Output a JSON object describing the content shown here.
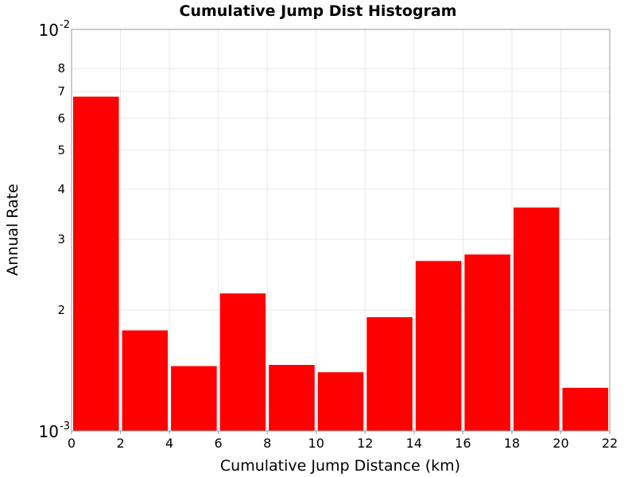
{
  "chart_data": {
    "type": "bar",
    "title": "Cumulative Jump Dist Histogram",
    "xlabel": "Cumulative Jump Distance (km)",
    "ylabel": "Annual Rate",
    "y_scale": "log",
    "xlim": [
      0,
      22
    ],
    "ylim": [
      0.001,
      0.01
    ],
    "x_ticks": [
      "0",
      "2",
      "4",
      "6",
      "8",
      "10",
      "12",
      "14",
      "16",
      "18",
      "20",
      "22"
    ],
    "y_minor_ticks": [
      {
        "value": 0.002,
        "label": "2"
      },
      {
        "value": 0.003,
        "label": "3"
      },
      {
        "value": 0.004,
        "label": "4"
      },
      {
        "value": 0.005,
        "label": "5"
      },
      {
        "value": 0.006,
        "label": "6"
      },
      {
        "value": 0.007,
        "label": "7"
      },
      {
        "value": 0.008,
        "label": "8"
      }
    ],
    "y_decades": [
      {
        "value": 0.001,
        "base": "10",
        "exp": "-3"
      },
      {
        "value": 0.01,
        "base": "10",
        "exp": "-2"
      }
    ],
    "grid": true,
    "bar_color": "#ff0000",
    "bins": [
      {
        "x0": 0,
        "x1": 2,
        "value": 0.0068
      },
      {
        "x0": 2,
        "x1": 4,
        "value": 0.00178
      },
      {
        "x0": 4,
        "x1": 6,
        "value": 0.00145
      },
      {
        "x0": 6,
        "x1": 8,
        "value": 0.0022
      },
      {
        "x0": 8,
        "x1": 10,
        "value": 0.00146
      },
      {
        "x0": 10,
        "x1": 12,
        "value": 0.0014
      },
      {
        "x0": 12,
        "x1": 14,
        "value": 0.00192
      },
      {
        "x0": 14,
        "x1": 16,
        "value": 0.00265
      },
      {
        "x0": 16,
        "x1": 18,
        "value": 0.00275
      },
      {
        "x0": 18,
        "x1": 20,
        "value": 0.0036
      },
      {
        "x0": 20,
        "x1": 22,
        "value": 0.00128
      }
    ]
  }
}
